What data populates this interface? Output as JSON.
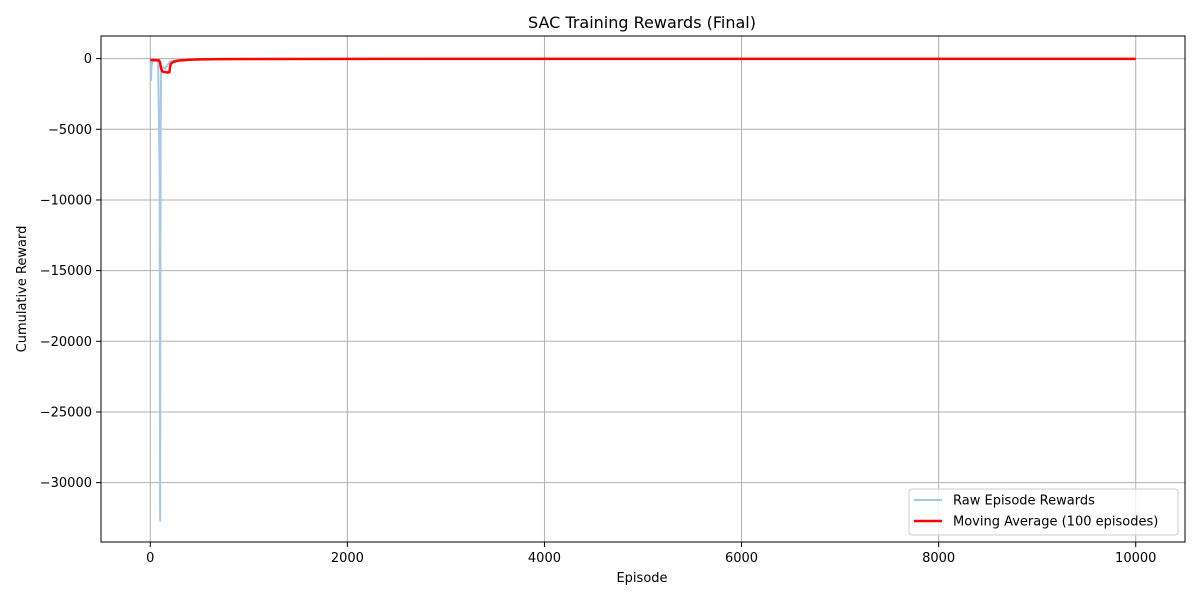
{
  "chart_data": {
    "type": "line",
    "title": "SAC Training Rewards (Final)",
    "xlabel": "Episode",
    "ylabel": "Cumulative Reward",
    "xlim": [
      -500,
      10500
    ],
    "ylim": [
      -34200,
      1600
    ],
    "grid": true,
    "legend_position": "bottom-right",
    "x_ticks": [
      {
        "value": 0,
        "label": "0"
      },
      {
        "value": 2000,
        "label": "2000"
      },
      {
        "value": 4000,
        "label": "4000"
      },
      {
        "value": 6000,
        "label": "6000"
      },
      {
        "value": 8000,
        "label": "8000"
      },
      {
        "value": 10000,
        "label": "10000"
      }
    ],
    "y_ticks": [
      {
        "value": 0,
        "label": "0"
      },
      {
        "value": -5000,
        "label": "−5000"
      },
      {
        "value": -10000,
        "label": "−10000"
      },
      {
        "value": -15000,
        "label": "−15000"
      },
      {
        "value": -20000,
        "label": "−20000"
      },
      {
        "value": -25000,
        "label": "−25000"
      },
      {
        "value": -30000,
        "label": "−30000"
      }
    ],
    "series": [
      {
        "name": "Raw Episode Rewards",
        "color": "#a6c8e4",
        "x": [
          0,
          5,
          8,
          12,
          20,
          40,
          60,
          80,
          95,
          100,
          105,
          110,
          120,
          150,
          200,
          300,
          500,
          1000,
          3000,
          5000,
          7000,
          9000,
          10000
        ],
        "y": [
          -100,
          -400,
          -1500,
          -600,
          -200,
          -150,
          -150,
          -200,
          -8000,
          -32700,
          -5000,
          -1000,
          -600,
          -700,
          -200,
          -80,
          -40,
          -30,
          -20,
          -20,
          -20,
          -20,
          -20
        ]
      },
      {
        "name": "Moving Average (100 episodes)",
        "color": "#ff0000",
        "x": [
          0,
          50,
          90,
          100,
          110,
          120,
          150,
          180,
          195,
          200,
          210,
          230,
          260,
          300,
          400,
          500,
          700,
          1000,
          3000,
          5000,
          7000,
          9000,
          10000
        ],
        "y": [
          -100,
          -110,
          -130,
          -300,
          -700,
          -900,
          -960,
          -980,
          -960,
          -600,
          -350,
          -250,
          -180,
          -130,
          -80,
          -50,
          -35,
          -25,
          -20,
          -20,
          -20,
          -20,
          -20
        ]
      }
    ]
  }
}
